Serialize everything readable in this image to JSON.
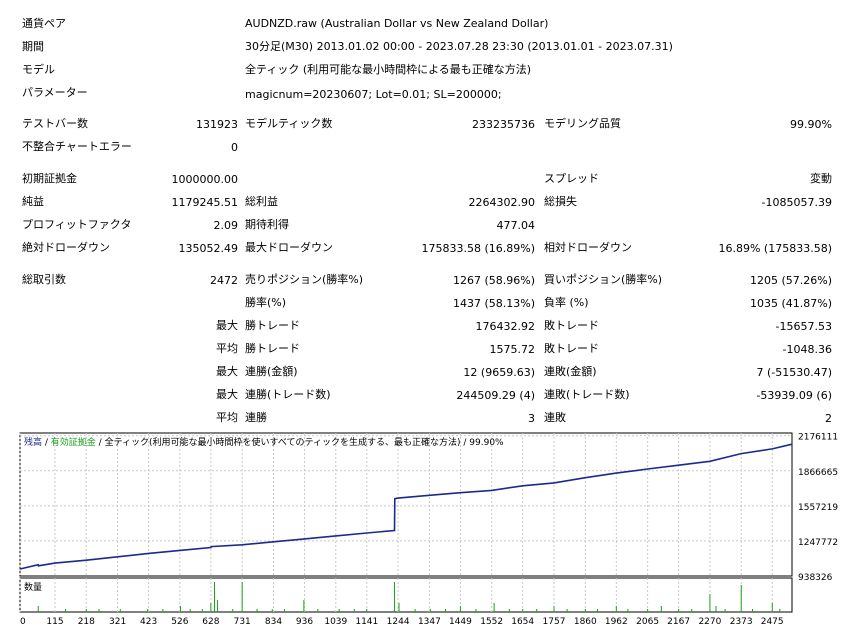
{
  "header": {
    "pair_label": "通貨ペア",
    "pair_value": "AUDNZD.raw (Australian Dollar vs New Zealand Dollar)",
    "period_label": "期間",
    "period_value": "30分足(M30) 2013.01.02 00:00 - 2023.07.28 23:30 (2013.01.01 - 2023.07.31)",
    "model_label": "モデル",
    "model_value": "全ティック (利用可能な最小時間枠による最も正確な方法)",
    "params_label": "パラメーター",
    "params_value": "magicnum=20230607; Lot=0.01; SL=200000;"
  },
  "stats": {
    "test_bars_label": "テストバー数",
    "test_bars": "131923",
    "model_ticks_label": "モデルティック数",
    "model_ticks": "233235736",
    "model_quality_label": "モデリング品質",
    "model_quality": "99.90%",
    "mismatch_label": "不整合チャートエラー",
    "mismatch": "0",
    "initial_deposit_label": "初期証拠金",
    "initial_deposit": "1000000.00",
    "spread_label": "スプレッド",
    "spread": "変動",
    "net_profit_label": "純益",
    "net_profit": "1179245.51",
    "gross_profit_label": "総利益",
    "gross_profit": "2264302.90",
    "gross_loss_label": "総損失",
    "gross_loss": "-1085057.39",
    "profit_factor_label": "プロフィットファクタ",
    "profit_factor": "2.09",
    "expected_payoff_label": "期待利得",
    "expected_payoff": "477.04",
    "abs_dd_label": "絶対ドローダウン",
    "abs_dd": "135052.49",
    "max_dd_label": "最大ドローダウン",
    "max_dd": "175833.58 (16.89%)",
    "rel_dd_label": "相対ドローダウン",
    "rel_dd": "16.89% (175833.58)",
    "total_trades_label": "総取引数",
    "total_trades": "2472",
    "short_label": "売りポジション(勝率%)",
    "short": "1267 (58.96%)",
    "long_label": "買いポジション(勝率%)",
    "long": "1205 (57.26%)",
    "win_rate_label": "勝率(%)",
    "win_rate": "1437 (58.13%)",
    "loss_rate_label": "負率 (%)",
    "loss_rate": "1035 (41.87%)",
    "max_label": "最大",
    "avg_label": "平均",
    "win_trade_label": "勝トレード",
    "loss_trade_label": "敗トレード",
    "largest_win": "176432.92",
    "largest_loss": "-15657.53",
    "avg_win": "1575.72",
    "avg_loss": "-1048.36",
    "consec_wins_amt_label": "連勝(金額)",
    "consec_wins_amt": "12 (9659.63)",
    "consec_loss_amt_label": "連敗(金額)",
    "consec_loss_amt": "7 (-51530.47)",
    "consec_wins_cnt_label": "連勝(トレード数)",
    "consec_wins_cnt": "244509.29 (4)",
    "consec_loss_cnt_label": "連敗(トレード数)",
    "consec_loss_cnt": "-53939.09 (6)",
    "avg_consec_wins_label": "連勝",
    "avg_consec_wins": "3",
    "avg_consec_loss_label": "連敗",
    "avg_consec_loss": "2"
  },
  "chart_legend": {
    "balance": "残高",
    "sep1": " / ",
    "equity": "有効証拠金",
    "sep2": " / ",
    "ticks": "全ティック(利用可能な最小時間枠を使いすべてのティックを生成する、最も正確な方法)",
    "sep3": " / ",
    "quality": "99.90%"
  },
  "volume_label": "数量",
  "colors": {
    "balance": "#1c2a8c",
    "equity": "#1aa11a",
    "volume": "#1aa11a",
    "grid": "#c8c8c8"
  },
  "chart_data": {
    "type": "line",
    "x": [
      0,
      60,
      61,
      115,
      218,
      321,
      423,
      526,
      628,
      629,
      731,
      834,
      936,
      1039,
      1141,
      1232,
      1233,
      1244,
      1347,
      1449,
      1552,
      1654,
      1757,
      1860,
      1962,
      2065,
      2167,
      2270,
      2373,
      2475,
      2540
    ],
    "series": [
      {
        "values": [
          1000000,
          1038000,
          1028000,
          1052000,
          1078000,
          1108000,
          1138000,
          1164000,
          1190000,
          1198000,
          1214000,
          1240000,
          1266000,
          1292000,
          1318000,
          1340000,
          1620000,
          1626000,
          1650000,
          1673000,
          1694000,
          1734000,
          1760000,
          1806000,
          1846000,
          1882000,
          1916000,
          1950000,
          2018000,
          2060000,
          2101000
        ]
      }
    ],
    "yticks": [
      938326,
      1247772,
      1557219,
      1866665,
      2176111
    ],
    "xticks": [
      0,
      115,
      218,
      321,
      423,
      526,
      628,
      731,
      834,
      936,
      1039,
      1141,
      1244,
      1347,
      1449,
      1552,
      1654,
      1757,
      1860,
      1962,
      2065,
      2167,
      2270,
      2373,
      2475
    ],
    "xlim": [
      0,
      2540
    ],
    "ylim": [
      938326,
      2200000
    ],
    "volume": {
      "x": [
        60,
        150,
        218,
        260,
        330,
        420,
        470,
        528,
        560,
        600,
        628,
        640,
        650,
        700,
        731,
        780,
        830,
        870,
        934,
        980,
        1050,
        1100,
        1141,
        1232,
        1247,
        1300,
        1350,
        1400,
        1449,
        1500,
        1560,
        1610,
        1654,
        1700,
        1757,
        1800,
        1860,
        1900,
        1962,
        2000,
        2065,
        2110,
        2167,
        2210,
        2270,
        2290,
        2320,
        2373,
        2410,
        2475,
        2500
      ],
      "values": [
        2,
        1,
        1,
        1,
        1,
        1,
        1,
        2,
        1,
        1,
        3,
        10,
        4,
        1,
        10,
        1,
        1,
        1,
        4,
        1,
        1,
        1,
        1,
        10,
        3,
        1,
        1,
        1,
        2,
        1,
        3,
        1,
        1,
        1,
        2,
        1,
        1,
        1,
        2,
        1,
        1,
        2,
        1,
        1,
        6,
        2,
        1,
        9,
        1,
        3,
        1
      ]
    }
  }
}
